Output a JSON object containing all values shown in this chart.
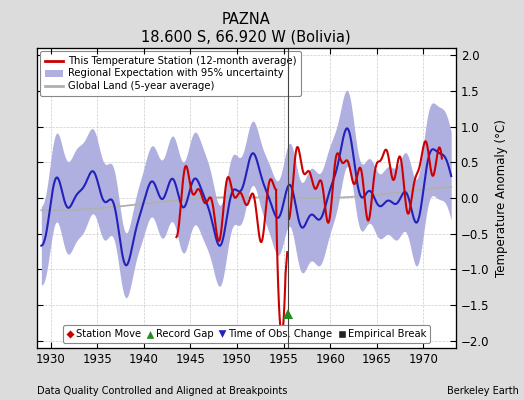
{
  "title": "PAZNA",
  "subtitle": "18.600 S, 66.920 W (Bolivia)",
  "xlabel_bottom": "Data Quality Controlled and Aligned at Breakpoints",
  "xlabel_right": "Berkeley Earth",
  "ylabel": "Temperature Anomaly (°C)",
  "xlim": [
    1928.5,
    1973.5
  ],
  "ylim": [
    -2.1,
    2.1
  ],
  "yticks": [
    -2,
    -1.5,
    -1,
    -0.5,
    0,
    0.5,
    1,
    1.5,
    2
  ],
  "xticks": [
    1930,
    1935,
    1940,
    1945,
    1950,
    1955,
    1960,
    1965,
    1970
  ],
  "bg_color": "#dcdcdc",
  "plot_bg_color": "#ffffff",
  "grid_color": "#cccccc",
  "uncertainty_color": "#b0b0e0",
  "regional_line_color": "#2222bb",
  "station_line_color": "#cc0000",
  "global_line_color": "#b0b0b0",
  "vertical_line_x": 1955.5,
  "record_gap_x": 1955.5,
  "record_gap_y": -1.62
}
